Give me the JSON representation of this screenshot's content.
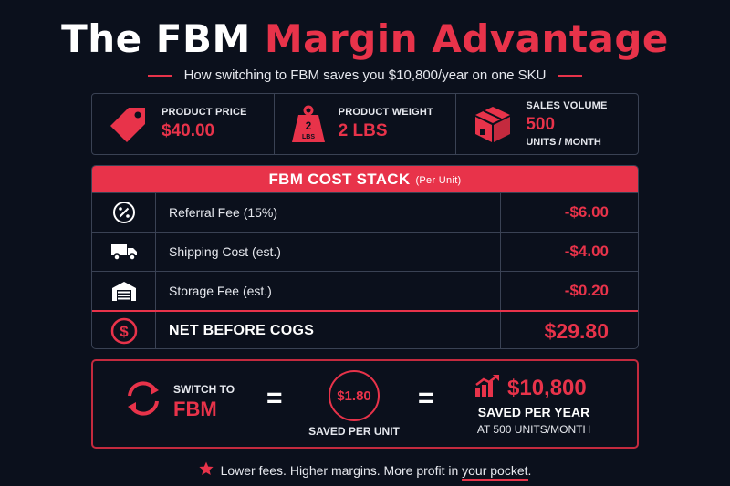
{
  "title": {
    "part1": "The FBM",
    "part2": "Margin Advantage"
  },
  "subtitle": "How switching to FBM saves you $10,800/year on one SKU",
  "stats": [
    {
      "label": "PRODUCT PRICE",
      "value": "$40.00",
      "icon": "price-tag-icon"
    },
    {
      "label": "PRODUCT WEIGHT",
      "value": "2 LBS",
      "icon": "weight-icon",
      "icon_text1": "2",
      "icon_text2": "LBS"
    },
    {
      "label": "SALES VOLUME",
      "value": "500",
      "sub": "UNITS / MONTH",
      "icon": "box-icon"
    }
  ],
  "cost_stack": {
    "header": "FBM COST STACK",
    "header_small": "(Per Unit)",
    "rows": [
      {
        "label": "Referral Fee (15%)",
        "value": "-$6.00",
        "icon": "percent-icon"
      },
      {
        "label": "Shipping Cost (est.)",
        "value": "-$4.00",
        "icon": "truck-icon"
      },
      {
        "label": "Storage Fee (est.)",
        "value": "-$0.20",
        "icon": "warehouse-icon"
      }
    ],
    "net": {
      "label": "NET BEFORE COGS",
      "value": "$29.80",
      "icon": "dollar-circle-icon"
    }
  },
  "summary": {
    "switch_small": "SWITCH TO",
    "switch_big": "FBM",
    "equals": "=",
    "per_unit_value": "$1.80",
    "per_unit_label": "SAVED PER UNIT",
    "per_year_value": "$10,800",
    "per_year_label": "SAVED PER YEAR",
    "per_year_sub": "AT 500 UNITS/MONTH"
  },
  "footer": {
    "text_before": "Lower fees. Higher margins. More profit in",
    "text_underlined": "your pocket",
    "text_after": "."
  },
  "colors": {
    "accent": "#e8334a",
    "background": "#0b101c",
    "border": "#3a4254"
  }
}
